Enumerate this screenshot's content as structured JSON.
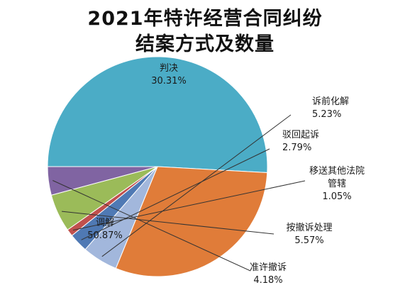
{
  "chart_data": {
    "type": "pie",
    "title": [
      "2021年特许经营合同纠纷",
      "结案方式及数量"
    ],
    "series": [
      {
        "slices": [
          {
            "name": "调解",
            "percent": 50.87,
            "percent_label": "50.87%",
            "color": "#4BACC6"
          },
          {
            "name": "判决",
            "percent": 30.31,
            "percent_label": "30.31%",
            "color": "#E07C39"
          },
          {
            "name": "诉前化解",
            "percent": 5.23,
            "percent_label": "5.23%",
            "color": "#A2B7DC"
          },
          {
            "name": "驳回起诉",
            "percent": 2.79,
            "percent_label": "2.79%",
            "color": "#4F79B4"
          },
          {
            "name": "移送其他法院管辖",
            "name_lines": [
              "移送其他法院",
              "管辖"
            ],
            "percent": 1.05,
            "percent_label": "1.05%",
            "color": "#C0504D"
          },
          {
            "name": "按撤诉处理",
            "percent": 5.57,
            "percent_label": "5.57%",
            "color": "#9BBB59"
          },
          {
            "name": "准许撤诉",
            "percent": 4.18,
            "percent_label": "4.18%",
            "color": "#8064A2"
          }
        ]
      }
    ],
    "legend": "none"
  }
}
